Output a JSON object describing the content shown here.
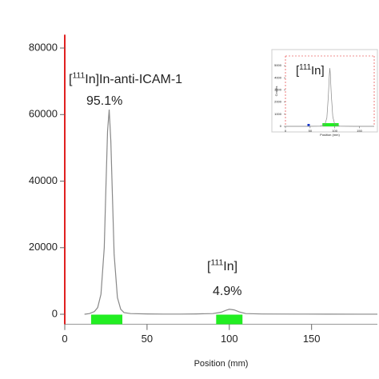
{
  "chart_data": [
    {
      "type": "line",
      "xlabel": "Position (mm)",
      "xlim": [
        0,
        190
      ],
      "xticks": [
        0,
        50,
        100,
        150
      ],
      "ylim": [
        -3000,
        84000
      ],
      "yticks": [
        0,
        20000,
        40000,
        60000,
        80000
      ],
      "grid": false,
      "series": [
        {
          "color": "#888888",
          "x": [
            12,
            15,
            18,
            20,
            22,
            24,
            25,
            26,
            27,
            28,
            29,
            30,
            32,
            34,
            36,
            40,
            50,
            60,
            70,
            80,
            90,
            95,
            98,
            100,
            103,
            106,
            110,
            120,
            140,
            160,
            180,
            190
          ],
          "values": [
            0,
            200,
            800,
            2000,
            6000,
            20000,
            38000,
            55000,
            61500,
            52000,
            35000,
            18000,
            5000,
            1500,
            500,
            200,
            100,
            50,
            50,
            100,
            200,
            600,
            1200,
            1500,
            1300,
            700,
            200,
            80,
            50,
            30,
            20,
            20
          ]
        }
      ],
      "regions": {
        "color": "#22ee22",
        "bounds": [
          [
            16,
            35
          ],
          [
            92,
            108
          ]
        ]
      },
      "annotations": [
        {
          "parts": [
            "[",
            "111",
            "In]In-anti-ICAM-1"
          ]
        },
        {
          "parts": [
            "95.1%"
          ]
        },
        {
          "parts": [
            "[",
            "111",
            "In]"
          ]
        },
        {
          "parts": [
            "4.9%"
          ]
        }
      ]
    },
    {
      "type": "line",
      "xlabel": "Position (mm)",
      "ylabel": "Counts",
      "xlim": [
        0,
        180
      ],
      "xticks": [
        0,
        50,
        100,
        150
      ],
      "ylim": [
        0,
        5800
      ],
      "yticks": [
        0,
        1000,
        2000,
        3000,
        4000,
        5000
      ],
      "grid": false,
      "series": [
        {
          "color": "#888888",
          "x": [
            0,
            40,
            70,
            80,
            84,
            87,
            89,
            90,
            91,
            93,
            96,
            100,
            110,
            140,
            180
          ],
          "values": [
            0,
            0,
            20,
            150,
            700,
            2500,
            4200,
            4800,
            4300,
            2600,
            800,
            150,
            20,
            0,
            0
          ]
        }
      ],
      "regions": {
        "color": "#22ee22",
        "bounds": [
          [
            75,
            108
          ]
        ]
      },
      "markers": {
        "color": "#1133cc",
        "x": [
          47
        ]
      },
      "annotations": [
        {
          "parts": [
            "[",
            "111",
            "In]"
          ]
        }
      ]
    }
  ]
}
